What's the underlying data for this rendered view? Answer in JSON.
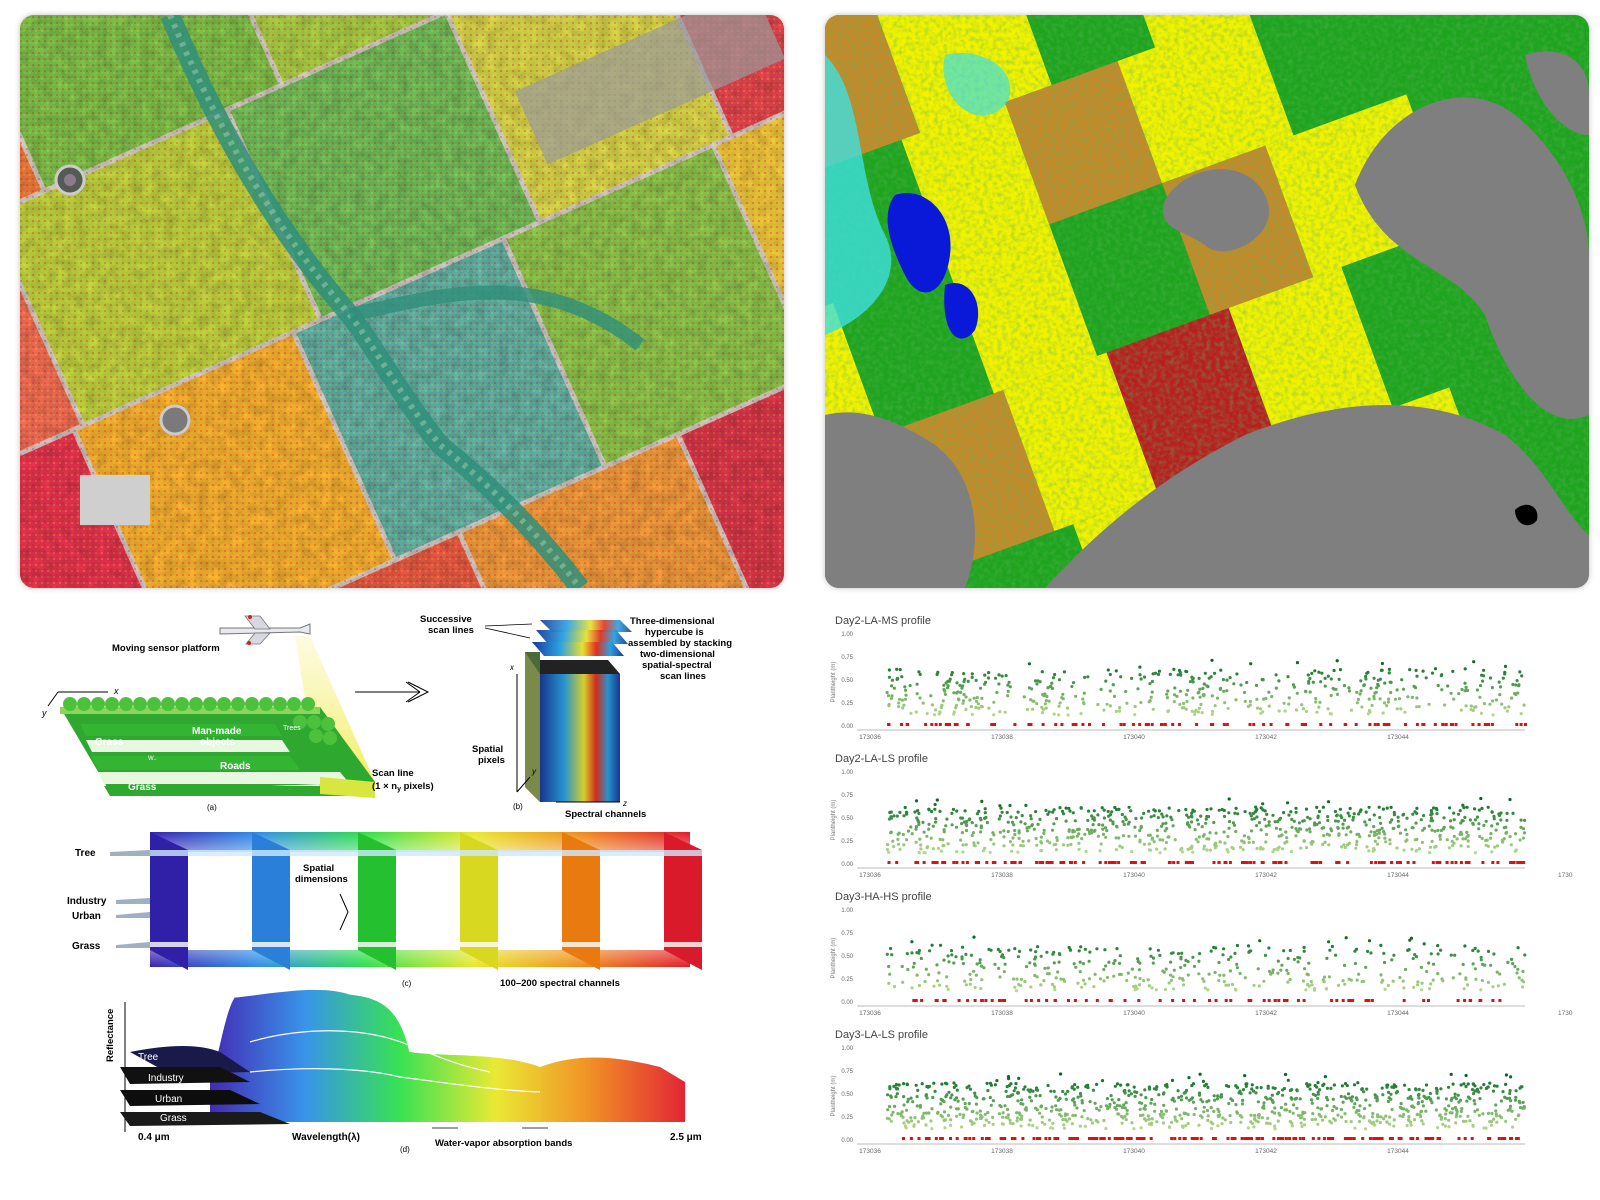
{
  "hyperspectral": {
    "a": {
      "platform": "Moving sensor platform",
      "axis_x": "x",
      "axis_y": "y",
      "grass_top": "Grass",
      "grass_bottom": "Grass",
      "manmade_1": "Man-made",
      "manmade_2": "objects",
      "trees": "Trees",
      "water": "W..",
      "roads": "Roads",
      "scanline_1": "Scan line",
      "scanline_2": "(1 × n",
      "scanline_sub": "y",
      "scanline_3": " pixels)",
      "caption": "(a)"
    },
    "b": {
      "successive_1": "Successive",
      "successive_2": "scan lines",
      "hyper_1": "Three-dimensional",
      "hyper_2": "hypercube is",
      "hyper_3": "assembled by stacking",
      "hyper_4": "two-dimensional",
      "hyper_5": "spatial-spectral",
      "hyper_6": "scan lines",
      "axis_x": "x",
      "axis_y": "y",
      "axis_z": "z",
      "spatial_1": "Spatial",
      "spatial_2": "pixels",
      "spectral": "Spectral channels",
      "caption": "(b)"
    },
    "c": {
      "tree": "Tree",
      "industry": "Industry",
      "urban": "Urban",
      "grass": "Grass",
      "spatial_1": "Spatial",
      "spatial_2": "dimensions",
      "channels": "100–200 spectral channels",
      "caption": "(c)"
    },
    "d": {
      "ylabel": "Reflectance",
      "tree": "Tree",
      "industry": "Industry",
      "urban": "Urban",
      "grass": "Grass",
      "wl_min": "0.4 μm",
      "wl_max": "2.5 μm",
      "xlabel": "Wavelength(λ)",
      "water": "Water-vapor absorption bands",
      "caption": "(d)"
    }
  },
  "profiles": {
    "ylabel": "Plantheight (m)",
    "yticks": [
      "1.00",
      "0.75",
      "0.50",
      "0.25",
      "0.00"
    ],
    "xticks": [
      "173036",
      "173038",
      "173040",
      "173042",
      "173044"
    ],
    "x_overflow": "1730",
    "panels": [
      {
        "title": "Day2-LA-MS profile"
      },
      {
        "title": "Day2-LA-LS profile"
      },
      {
        "title": "Day3-HA-HS profile"
      },
      {
        "title": "Day3-LA-LS profile"
      }
    ]
  },
  "colors": {
    "class_green": "#1fa41f",
    "class_yellow": "#f2f200",
    "class_tan": "#c48a2a",
    "class_cyan": "#3fe0e0",
    "class_red": "#b82020",
    "class_gray": "#7f7f7f",
    "class_blue": "#0a18d8",
    "profile_dark": "#1e7a34",
    "profile_light": "#d9f0a0",
    "profile_ground": "#e01010"
  }
}
